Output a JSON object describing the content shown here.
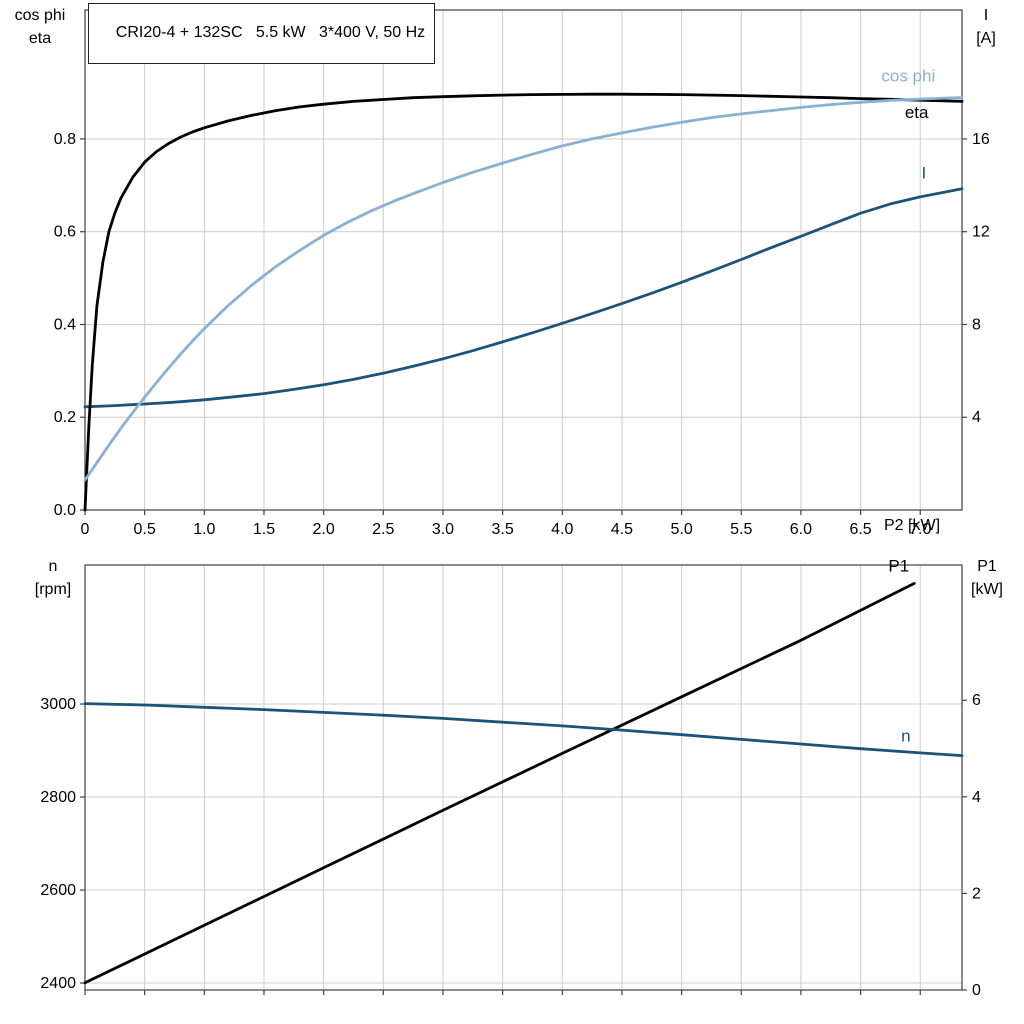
{
  "figure": {
    "colors": {
      "black": "#000000",
      "light_blue": "#8ab0d4",
      "dark_blue": "#1b5379",
      "grid": "#cccccc",
      "frame": "#404040",
      "background": "#ffffff",
      "text": "#000000"
    }
  },
  "chart_data": [
    {
      "type": "line",
      "title": "CRI20-4 + 132SC   5.5 kW   3*400 V, 50 Hz",
      "x_axis": {
        "label": "P2 [kW]",
        "range": [
          0,
          7.35
        ],
        "ticks": [
          0,
          0.5,
          1,
          1.5,
          2,
          2.5,
          3,
          3.5,
          4,
          4.5,
          5,
          5.5,
          6,
          6.5,
          7
        ],
        "tick_labels": [
          "0",
          "0.5",
          "1.0",
          "1.5",
          "2.0",
          "2.5",
          "3.0",
          "3.5",
          "4.0",
          "4.5",
          "5.0",
          "5.5",
          "6.0",
          "6.5",
          "7.0"
        ],
        "show_tick_labels": true,
        "grid": true
      },
      "y_left": {
        "label_lines": [
          "cos phi",
          "eta"
        ],
        "range": [
          0,
          1.078
        ],
        "ticks": [
          0,
          0.2,
          0.4,
          0.6,
          0.8
        ],
        "tick_labels": [
          "0.0",
          "0.2",
          "0.4",
          "0.6",
          "0.8"
        ]
      },
      "y_right": {
        "label_lines": [
          "I",
          "[A]"
        ],
        "range": [
          0,
          21.56
        ],
        "ticks": [
          4,
          8,
          12,
          16
        ],
        "tick_labels": [
          "4",
          "8",
          "12",
          "16"
        ]
      },
      "series": [
        {
          "name": "I",
          "color": "dark_blue",
          "axis": "right",
          "label_pos": {
            "x": 7.03,
            "y": 14.3
          },
          "points": [
            [
              0,
              4.45
            ],
            [
              0.25,
              4.5
            ],
            [
              0.5,
              4.57
            ],
            [
              0.75,
              4.65
            ],
            [
              1,
              4.75
            ],
            [
              1.25,
              4.88
            ],
            [
              1.5,
              5.02
            ],
            [
              1.75,
              5.2
            ],
            [
              2,
              5.4
            ],
            [
              2.25,
              5.63
            ],
            [
              2.5,
              5.9
            ],
            [
              2.75,
              6.2
            ],
            [
              3,
              6.52
            ],
            [
              3.25,
              6.87
            ],
            [
              3.5,
              7.25
            ],
            [
              3.75,
              7.64
            ],
            [
              4,
              8.05
            ],
            [
              4.25,
              8.47
            ],
            [
              4.5,
              8.9
            ],
            [
              4.75,
              9.35
            ],
            [
              5,
              9.82
            ],
            [
              5.25,
              10.3
            ],
            [
              5.5,
              10.8
            ],
            [
              5.75,
              11.31
            ],
            [
              6,
              11.8
            ],
            [
              6.25,
              12.3
            ],
            [
              6.5,
              12.8
            ],
            [
              6.75,
              13.2
            ],
            [
              7,
              13.5
            ],
            [
              7.2,
              13.7
            ],
            [
              7.35,
              13.85
            ]
          ]
        },
        {
          "name": "eta",
          "color": "black",
          "axis": "left",
          "label_pos": {
            "x": 6.97,
            "y": 0.845
          },
          "points": [
            [
              0,
              0
            ],
            [
              0.03,
              0.17
            ],
            [
              0.06,
              0.31
            ],
            [
              0.1,
              0.44
            ],
            [
              0.15,
              0.535
            ],
            [
              0.2,
              0.6
            ],
            [
              0.25,
              0.64
            ],
            [
              0.3,
              0.672
            ],
            [
              0.4,
              0.717
            ],
            [
              0.5,
              0.75
            ],
            [
              0.6,
              0.773
            ],
            [
              0.7,
              0.79
            ],
            [
              0.8,
              0.804
            ],
            [
              0.9,
              0.815
            ],
            [
              1,
              0.824
            ],
            [
              1.2,
              0.839
            ],
            [
              1.4,
              0.851
            ],
            [
              1.6,
              0.861
            ],
            [
              1.8,
              0.869
            ],
            [
              2,
              0.875
            ],
            [
              2.25,
              0.881
            ],
            [
              2.5,
              0.885
            ],
            [
              2.75,
              0.889
            ],
            [
              3,
              0.891
            ],
            [
              3.25,
              0.893
            ],
            [
              3.5,
              0.8945
            ],
            [
              3.75,
              0.8955
            ],
            [
              4,
              0.896
            ],
            [
              4.25,
              0.8965
            ],
            [
              4.5,
              0.8965
            ],
            [
              4.75,
              0.896
            ],
            [
              5,
              0.8955
            ],
            [
              5.25,
              0.8945
            ],
            [
              5.5,
              0.8935
            ],
            [
              5.75,
              0.892
            ],
            [
              6,
              0.8905
            ],
            [
              6.25,
              0.889
            ],
            [
              6.5,
              0.887
            ],
            [
              6.75,
              0.8855
            ],
            [
              7,
              0.8835
            ],
            [
              7.2,
              0.882
            ],
            [
              7.35,
              0.881
            ]
          ]
        },
        {
          "name": "cos phi",
          "color": "light_blue",
          "axis": "left",
          "label_pos": {
            "x": 6.9,
            "y": 0.924
          },
          "points": [
            [
              0,
              0.065
            ],
            [
              0.1,
              0.102
            ],
            [
              0.2,
              0.14
            ],
            [
              0.3,
              0.176
            ],
            [
              0.4,
              0.21
            ],
            [
              0.5,
              0.243
            ],
            [
              0.6,
              0.275
            ],
            [
              0.7,
              0.306
            ],
            [
              0.8,
              0.336
            ],
            [
              0.9,
              0.364
            ],
            [
              1,
              0.391
            ],
            [
              1.2,
              0.441
            ],
            [
              1.4,
              0.485
            ],
            [
              1.6,
              0.525
            ],
            [
              1.8,
              0.56
            ],
            [
              2,
              0.592
            ],
            [
              2.2,
              0.62
            ],
            [
              2.4,
              0.645
            ],
            [
              2.6,
              0.667
            ],
            [
              2.8,
              0.687
            ],
            [
              3,
              0.706
            ],
            [
              3.25,
              0.728
            ],
            [
              3.5,
              0.748
            ],
            [
              3.75,
              0.767
            ],
            [
              4,
              0.785
            ],
            [
              4.25,
              0.8
            ],
            [
              4.5,
              0.813
            ],
            [
              4.75,
              0.825
            ],
            [
              5,
              0.836
            ],
            [
              5.25,
              0.846
            ],
            [
              5.5,
              0.854
            ],
            [
              5.75,
              0.861
            ],
            [
              6,
              0.868
            ],
            [
              6.25,
              0.874
            ],
            [
              6.5,
              0.879
            ],
            [
              6.75,
              0.883
            ],
            [
              7,
              0.886
            ],
            [
              7.2,
              0.888
            ],
            [
              7.35,
              0.889
            ]
          ]
        }
      ]
    },
    {
      "type": "line",
      "x_axis": {
        "range": [
          0,
          7.35
        ],
        "ticks": [
          0,
          0.5,
          1,
          1.5,
          2,
          2.5,
          3,
          3.5,
          4,
          4.5,
          5,
          5.5,
          6,
          6.5,
          7
        ],
        "tick_labels": [],
        "show_tick_labels": false,
        "grid": true
      },
      "y_left": {
        "label_lines": [
          "n",
          "[rpm]"
        ],
        "range": [
          2385,
          3299
        ],
        "ticks": [
          2400,
          2600,
          2800,
          3000
        ],
        "tick_labels": [
          "2400",
          "2600",
          "2800",
          "3000"
        ]
      },
      "y_right": {
        "label_lines": [
          "P1",
          "[kW]"
        ],
        "range": [
          0,
          8.8
        ],
        "ticks": [
          0,
          2,
          4,
          6
        ],
        "tick_labels": [
          "0",
          "2",
          "4",
          "6"
        ]
      },
      "series": [
        {
          "name": "P1",
          "color": "black",
          "axis": "right",
          "label_pos": {
            "x": 6.82,
            "y": 8.67
          },
          "points": [
            [
              0,
              0.15
            ],
            [
              1,
              1.34
            ],
            [
              2,
              2.53
            ],
            [
              3,
              3.72
            ],
            [
              4,
              4.9
            ],
            [
              5,
              6.07
            ],
            [
              6,
              7.24
            ],
            [
              6.95,
              8.42
            ]
          ]
        },
        {
          "name": "n",
          "color": "dark_blue",
          "axis": "left",
          "label_pos": {
            "x": 6.88,
            "y": 2919
          },
          "points": [
            [
              0,
              3001
            ],
            [
              0.5,
              2998
            ],
            [
              1,
              2993
            ],
            [
              1.5,
              2988
            ],
            [
              2,
              2982
            ],
            [
              2.5,
              2976
            ],
            [
              3,
              2969
            ],
            [
              3.5,
              2961
            ],
            [
              4,
              2953
            ],
            [
              4.5,
              2944
            ],
            [
              5,
              2934
            ],
            [
              5.5,
              2924
            ],
            [
              6,
              2914
            ],
            [
              6.5,
              2904
            ],
            [
              7,
              2895
            ],
            [
              7.35,
              2889
            ]
          ]
        }
      ]
    }
  ]
}
